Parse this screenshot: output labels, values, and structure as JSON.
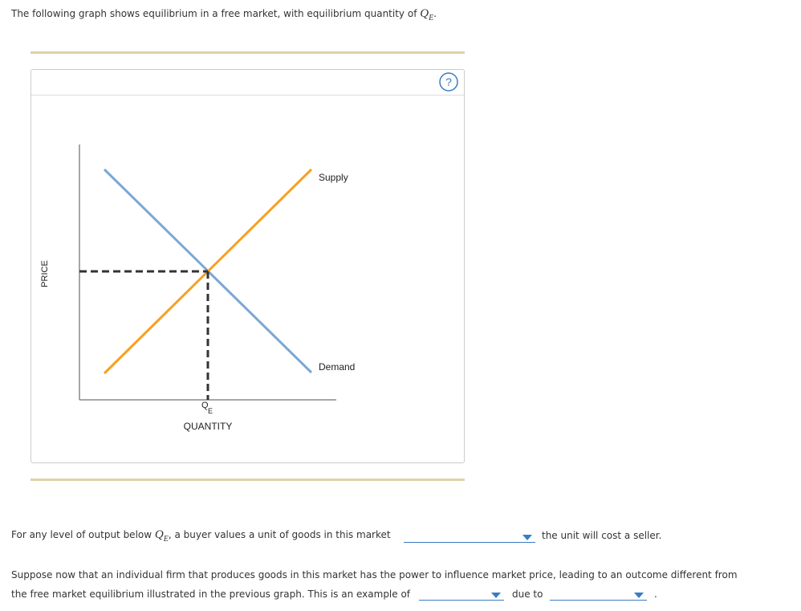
{
  "intro": {
    "text": "The following graph shows equilibrium in a free market, with equilibrium quantity of",
    "math_base": "Q",
    "math_sub": "E",
    "end": "."
  },
  "graph": {
    "help": "?",
    "y_axis_label": "PRICE",
    "x_axis_label": "QUANTITY",
    "supply_label": "Supply",
    "demand_label": "Demand",
    "qe_base": "Q",
    "qe_sub": "E"
  },
  "question1": {
    "before": "For any level of output below",
    "math_base": "Q",
    "math_sub": "E",
    "after": ", a buyer values a unit of goods in this market",
    "end": "the unit will cost a seller."
  },
  "question2": {
    "line1": "Suppose now that an individual firm that produces goods in this market has the power to influence market price, leading to an outcome different from",
    "line2": "the free market equilibrium illustrated in the previous graph. This is an example of",
    "middle": "due to",
    "end": "."
  }
}
